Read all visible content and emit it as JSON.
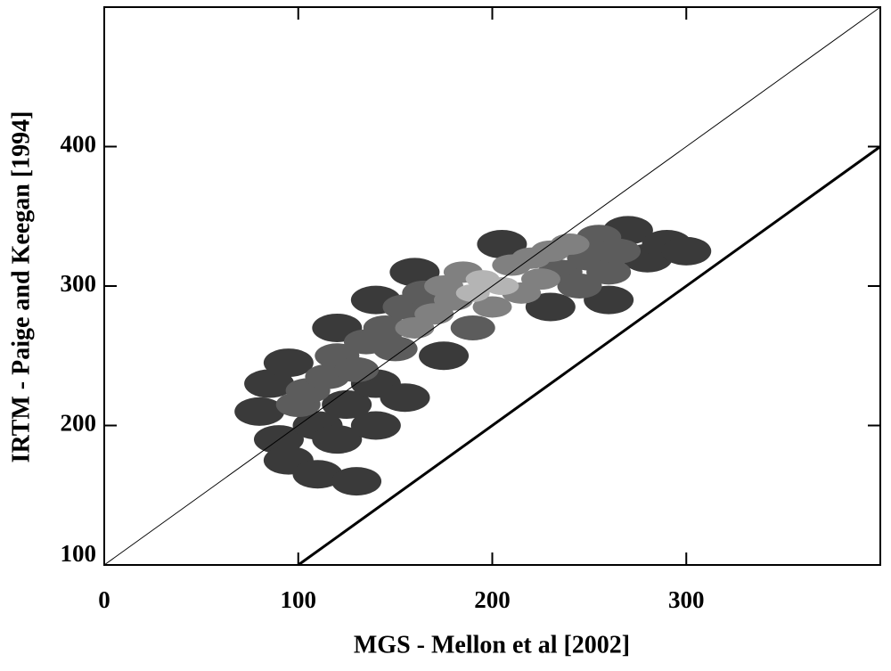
{
  "chart_data": {
    "type": "density",
    "x_label": "MGS - Mellon et al [2002]",
    "y_label": "IRTM - Paige and Keegan [1994]",
    "xlim": [
      0,
      400
    ],
    "ylim": [
      100,
      500
    ],
    "xticks": [
      0,
      100,
      200,
      300
    ],
    "yticks": [
      100,
      200,
      300,
      400
    ],
    "density": {
      "x": [
        80,
        85,
        90,
        95,
        100,
        105,
        110,
        115,
        120,
        125,
        130,
        135,
        140,
        145,
        150,
        155,
        160,
        165,
        170,
        175,
        180,
        185,
        190,
        195,
        200,
        205,
        210,
        215,
        220,
        225,
        230,
        235,
        240,
        245,
        250,
        255,
        260,
        265,
        270,
        280,
        290,
        300,
        95,
        110,
        130,
        120,
        140,
        155,
        175,
        190,
        230,
        160,
        140,
        120,
        205,
        260
      ],
      "values": [
        210,
        230,
        190,
        245,
        215,
        225,
        200,
        235,
        250,
        215,
        240,
        260,
        230,
        270,
        255,
        285,
        270,
        295,
        280,
        300,
        290,
        310,
        295,
        305,
        285,
        300,
        315,
        295,
        320,
        305,
        325,
        310,
        330,
        300,
        320,
        335,
        310,
        325,
        340,
        320,
        330,
        325,
        175,
        165,
        160,
        190,
        200,
        220,
        250,
        270,
        285,
        310,
        290,
        270,
        330,
        290
      ],
      "level": [
        2,
        2,
        2,
        2,
        3,
        3,
        2,
        3,
        3,
        2,
        3,
        3,
        2,
        3,
        3,
        3,
        4,
        3,
        4,
        4,
        4,
        4,
        5,
        5,
        4,
        5,
        4,
        4,
        4,
        4,
        4,
        3,
        4,
        3,
        3,
        3,
        3,
        3,
        2,
        2,
        2,
        2,
        2,
        2,
        2,
        2,
        2,
        2,
        2,
        3,
        2,
        2,
        2,
        2,
        2,
        2
      ],
      "level_colors": [
        "#1e1e1e",
        "#3a3a3a",
        "#5c5c5c",
        "#808080",
        "#b4b4b4"
      ]
    },
    "lines": [
      {
        "x": [
          0,
          400
        ],
        "values": [
          100,
          500
        ],
        "color": "#000",
        "width": 1
      },
      {
        "x": [
          100,
          400
        ],
        "values": [
          100,
          400
        ],
        "color": "#000",
        "width": 3
      }
    ]
  }
}
